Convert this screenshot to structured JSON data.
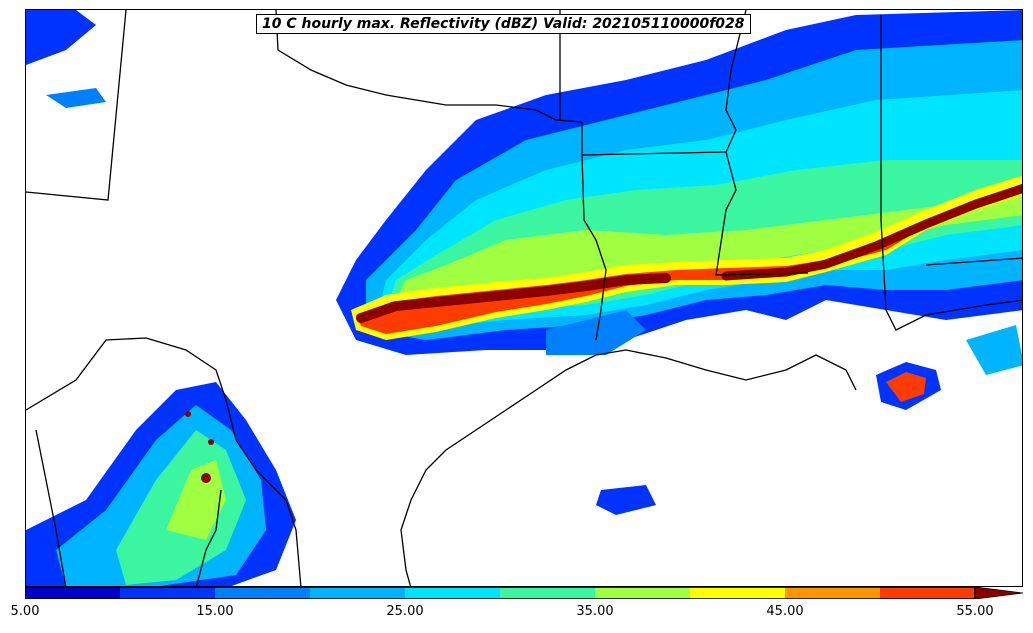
{
  "title": "10 C hourly max. Reflectivity (dBZ) Valid: 202105110000f028",
  "colorbar": {
    "levels": [
      5,
      10,
      15,
      20,
      25,
      30,
      35,
      40,
      45,
      50,
      55
    ],
    "colors": [
      "#0000cd",
      "#0033ff",
      "#0080ff",
      "#00b4ff",
      "#00e5ff",
      "#3cf5a0",
      "#a0ff40",
      "#ffff00",
      "#ff9600",
      "#ff3c00",
      "#b40000"
    ],
    "extend_color": "#8b0000",
    "tick_labels": [
      "5.00",
      "15.00",
      "25.00",
      "35.00",
      "45.00",
      "55.00"
    ],
    "tick_values": [
      5,
      15,
      25,
      35,
      45,
      55
    ]
  }
}
